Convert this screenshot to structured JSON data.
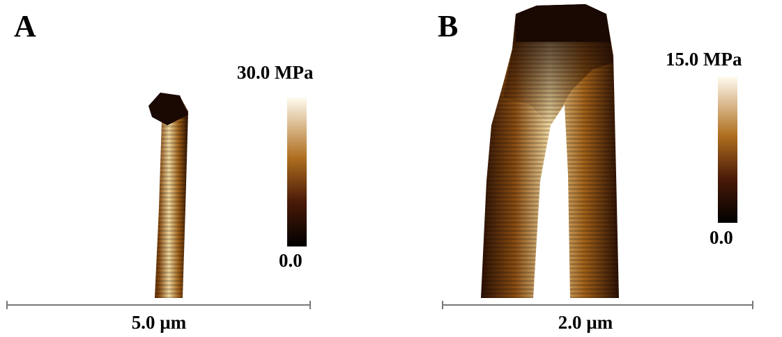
{
  "panels": [
    {
      "label": "A",
      "colorbar": {
        "max": "30.0 MPa",
        "min": "0.0"
      },
      "scale_bar": "5.0 µm"
    },
    {
      "label": "B",
      "colorbar": {
        "max": "15.0 MPa",
        "min": "0.0"
      },
      "scale_bar": "2.0 µm"
    }
  ]
}
